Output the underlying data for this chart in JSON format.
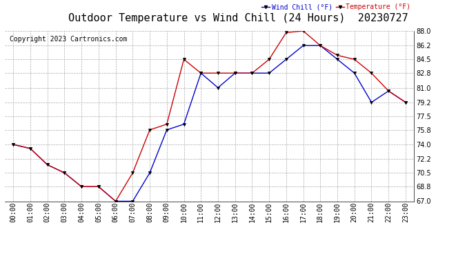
{
  "title": "Outdoor Temperature vs Wind Chill (24 Hours)  20230727",
  "copyright": "Copyright 2023 Cartronics.com",
  "legend_wind_chill": "Wind Chill (°F)",
  "legend_temperature": "Temperature (°F)",
  "hours": [
    "00:00",
    "01:00",
    "02:00",
    "03:00",
    "04:00",
    "05:00",
    "06:00",
    "07:00",
    "08:00",
    "09:00",
    "10:00",
    "11:00",
    "12:00",
    "13:00",
    "14:00",
    "15:00",
    "16:00",
    "17:00",
    "18:00",
    "19:00",
    "20:00",
    "21:00",
    "22:00",
    "23:00"
  ],
  "temperature": [
    74.0,
    73.5,
    71.5,
    70.5,
    68.8,
    68.8,
    67.0,
    70.5,
    75.8,
    76.5,
    84.5,
    82.8,
    82.8,
    82.8,
    82.8,
    84.5,
    87.8,
    88.0,
    86.2,
    85.0,
    84.5,
    82.8,
    80.6,
    79.2
  ],
  "wind_chill": [
    74.0,
    73.5,
    71.5,
    70.5,
    68.8,
    68.8,
    67.0,
    67.0,
    70.5,
    75.8,
    76.5,
    82.8,
    81.0,
    82.8,
    82.8,
    82.8,
    84.5,
    86.2,
    86.2,
    84.5,
    82.8,
    79.2,
    80.6,
    79.2
  ],
  "temp_color": "#cc0000",
  "wind_chill_color": "#0000cc",
  "background_color": "#ffffff",
  "grid_color": "#aaaaaa",
  "ylim": [
    67.0,
    88.0
  ],
  "yticks": [
    67.0,
    68.8,
    70.5,
    72.2,
    74.0,
    75.8,
    77.5,
    79.2,
    81.0,
    82.8,
    84.5,
    86.2,
    88.0
  ],
  "title_fontsize": 11,
  "label_fontsize": 7,
  "copyright_fontsize": 7
}
